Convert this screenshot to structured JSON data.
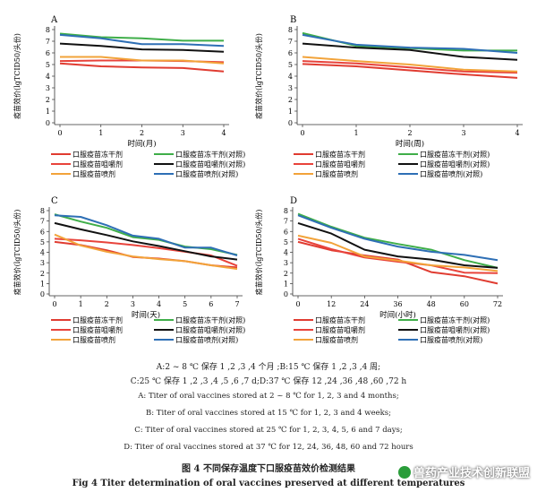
{
  "chart_data": [
    {
      "type": "line",
      "panel_label": "A",
      "ylabel": "疫苗效价(lgTCID50/头份)",
      "xlabel": "时间(月)",
      "x": [
        0,
        1,
        2,
        3,
        4
      ],
      "ylim": [
        0,
        8
      ],
      "yticks": [
        0,
        1,
        2,
        3,
        4,
        5,
        6,
        7,
        8
      ],
      "series": [
        {
          "name": "口服疫苗冻干剂",
          "color": "#e03c31",
          "values": [
            5.1,
            4.85,
            4.75,
            4.7,
            4.4
          ]
        },
        {
          "name": "口服疫苗冻干剂(对照)",
          "color": "#3fae49",
          "values": [
            7.65,
            7.35,
            7.25,
            7.05,
            7.05
          ]
        },
        {
          "name": "口服疫苗咀嚼剂",
          "color": "#e8433b",
          "values": [
            5.3,
            5.35,
            5.35,
            5.3,
            5.2
          ]
        },
        {
          "name": "口服疫苗咀嚼剂(对照)",
          "color": "#111111",
          "values": [
            6.8,
            6.6,
            6.3,
            6.25,
            6.1
          ]
        },
        {
          "name": "口服疫苗喷剂",
          "color": "#f2a33a",
          "values": [
            5.65,
            5.65,
            5.35,
            5.35,
            5.1
          ]
        },
        {
          "name": "口服疫苗喷剂(对照)",
          "color": "#2e6fb5",
          "values": [
            7.55,
            7.25,
            6.75,
            6.75,
            6.6
          ]
        }
      ]
    },
    {
      "type": "line",
      "panel_label": "B",
      "ylabel": "疫苗效价(lgTCID50/头份)",
      "xlabel": "时间(周)",
      "x": [
        0,
        1,
        2,
        3,
        4
      ],
      "ylim": [
        0,
        8
      ],
      "yticks": [
        0,
        1,
        2,
        3,
        4,
        5,
        6,
        7,
        8
      ],
      "series": [
        {
          "name": "口服疫苗冻干剂",
          "color": "#e03c31",
          "values": [
            5.05,
            4.85,
            4.5,
            4.15,
            3.85
          ]
        },
        {
          "name": "口服疫苗冻干剂(对照)",
          "color": "#3fae49",
          "values": [
            7.7,
            6.6,
            6.4,
            6.2,
            6.2
          ]
        },
        {
          "name": "口服疫苗咀嚼剂",
          "color": "#e8433b",
          "values": [
            5.3,
            5.1,
            4.75,
            4.4,
            4.3
          ]
        },
        {
          "name": "口服疫苗咀嚼剂(对照)",
          "color": "#111111",
          "values": [
            6.8,
            6.45,
            6.25,
            5.65,
            5.4
          ]
        },
        {
          "name": "口服疫苗喷剂",
          "color": "#f2a33a",
          "values": [
            5.65,
            5.3,
            5.0,
            4.55,
            4.4
          ]
        },
        {
          "name": "口服疫苗喷剂(对照)",
          "color": "#2e6fb5",
          "values": [
            7.55,
            6.7,
            6.45,
            6.35,
            6.0
          ]
        }
      ]
    },
    {
      "type": "line",
      "panel_label": "C",
      "ylabel": "疫苗效价(lgTCID50/头份)",
      "xlabel": "时间(天)",
      "x": [
        0,
        1,
        2,
        3,
        4,
        5,
        6,
        7
      ],
      "ylim": [
        0,
        8
      ],
      "yticks": [
        0,
        1,
        2,
        3,
        4,
        5,
        6,
        7,
        8
      ],
      "series": [
        {
          "name": "口服疫苗冻干剂",
          "color": "#e03c31",
          "values": [
            5.0,
            4.7,
            4.2,
            3.55,
            3.4,
            3.15,
            2.75,
            2.55
          ]
        },
        {
          "name": "口服疫苗冻干剂(对照)",
          "color": "#3fae49",
          "values": [
            7.65,
            6.95,
            6.35,
            5.45,
            5.2,
            4.55,
            4.3,
            3.75
          ]
        },
        {
          "name": "口服疫苗咀嚼剂",
          "color": "#e8433b",
          "values": [
            5.3,
            5.15,
            4.95,
            4.7,
            4.4,
            4.05,
            3.7,
            2.7
          ]
        },
        {
          "name": "口服疫苗咀嚼剂(对照)",
          "color": "#111111",
          "values": [
            6.8,
            6.2,
            5.65,
            5.05,
            4.6,
            4.1,
            3.6,
            3.3
          ]
        },
        {
          "name": "口服疫苗喷剂",
          "color": "#f2a33a",
          "values": [
            5.7,
            4.65,
            4.05,
            3.6,
            3.35,
            3.15,
            2.75,
            2.4
          ]
        },
        {
          "name": "口服疫苗喷剂(对照)",
          "color": "#2e6fb5",
          "values": [
            7.55,
            7.4,
            6.6,
            5.6,
            5.3,
            4.45,
            4.45,
            3.7
          ]
        }
      ]
    },
    {
      "type": "line",
      "panel_label": "D",
      "ylabel": "疫苗效价(lgTCID50/头份)",
      "xlabel": "时间(小时)",
      "x": [
        0,
        12,
        24,
        36,
        48,
        60,
        72
      ],
      "ylim": [
        0,
        8
      ],
      "yticks": [
        0,
        1,
        2,
        3,
        4,
        5,
        6,
        7,
        8
      ],
      "series": [
        {
          "name": "口服疫苗冻干剂",
          "color": "#e03c31",
          "values": [
            5.0,
            4.2,
            3.7,
            3.3,
            2.1,
            1.7,
            1.0
          ]
        },
        {
          "name": "口服疫苗冻干剂(对照)",
          "color": "#3fae49",
          "values": [
            7.7,
            6.45,
            5.4,
            4.8,
            4.25,
            3.25,
            2.5
          ]
        },
        {
          "name": "口服疫苗咀嚼剂",
          "color": "#e8433b",
          "values": [
            5.3,
            4.3,
            3.5,
            3.1,
            2.75,
            2.05,
            2.0
          ]
        },
        {
          "name": "口服疫苗咀嚼剂(对照)",
          "color": "#111111",
          "values": [
            6.8,
            5.8,
            4.25,
            3.6,
            3.3,
            2.75,
            2.5
          ]
        },
        {
          "name": "口服疫苗喷剂",
          "color": "#f2a33a",
          "values": [
            5.6,
            4.9,
            3.6,
            3.2,
            2.75,
            2.55,
            2.2
          ]
        },
        {
          "name": "口服疫苗喷剂(对照)",
          "color": "#2e6fb5",
          "values": [
            7.55,
            6.35,
            5.3,
            4.55,
            4.05,
            3.75,
            3.25
          ]
        }
      ]
    }
  ],
  "legend_labels": [
    "口服疫苗冻干剂",
    "口服疫苗冻干剂(对照)",
    "口服疫苗咀嚼剂",
    "口服疫苗咀嚼剂(对照)",
    "口服疫苗喷剂",
    "口服疫苗喷剂(对照)"
  ],
  "caption": {
    "line1": "A:2 ~ 8 ℃ 保存 1 ,2 ,3 ,4 个月 ;B:15 ℃ 保存 1 ,2 ,3 ,4 周;",
    "line2": "C:25 ℃ 保存 1 ,2 ,3 ,4 ,5 ,6 ,7 d;D:37 ℃ 保存 12 ,24 ,36 ,48 ,60 ,72 h",
    "line3": "A: Titer of oral vaccines stored at 2 ~ 8 ℃ for 1, 2, 3 and 4 months;",
    "line4": "B: Titer of oral vaccines stored at 15 ℃ for 1, 2, 3 and 4 weeks;",
    "line5": "C: Titer of oral vaccines stored at 25 ℃ for 1, 2, 3, 4, 5, 6 and 7 days;",
    "line6": "D: Titer of oral vaccines stored at 37 ℃ for 12, 24, 36, 48, 60 and 72 hours",
    "title_zh": "图 4    不同保存温度下口服疫苗效价检测结果",
    "title_en": "Fig 4    Titer determination of oral vaccines preserved at different temperatures"
  },
  "watermark": "兽药产业技术创新联盟"
}
